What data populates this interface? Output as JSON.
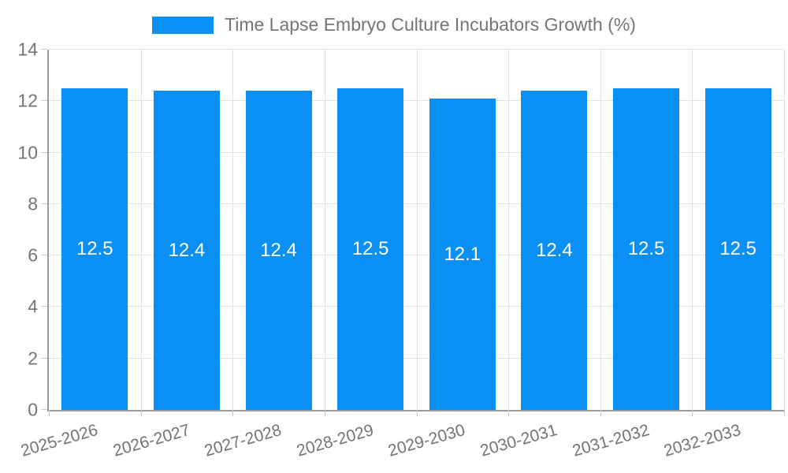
{
  "legend": {
    "swatch_color": "#0a8ff5"
  },
  "chart_data": {
    "type": "bar",
    "title": "Time Lapse Embryo Culture Incubators Growth (%)",
    "categories": [
      "2025-2026",
      "2026-2027",
      "2027-2028",
      "2028-2029",
      "2029-2030",
      "2030-2031",
      "2031-2032",
      "2032-2033"
    ],
    "values": [
      12.5,
      12.4,
      12.4,
      12.5,
      12.1,
      12.4,
      12.5,
      12.5
    ],
    "xlabel": "",
    "ylabel": "",
    "ylim": [
      0,
      14
    ],
    "yticks": [
      0,
      2,
      4,
      6,
      8,
      10,
      12,
      14
    ],
    "grid": true,
    "legend_position": "top",
    "colors": {
      "bar": "#0a8ff5",
      "value_label": "#ffffff",
      "axis_text": "#757575",
      "grid_line": "#e3e3e3",
      "axis_line": "#9a9a9a",
      "tick_mark": "#cccccc"
    }
  }
}
